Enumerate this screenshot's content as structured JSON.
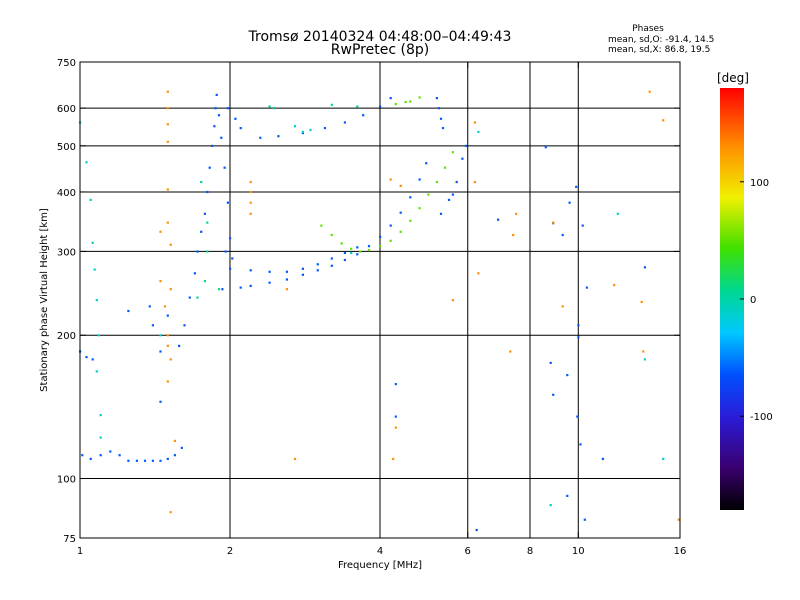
{
  "chart_data": {
    "type": "scatter",
    "title": "Tromsø 20140324 04:48:00–04:49:43",
    "subtitle": "RwPretec (8p)",
    "xlabel": "Frequency [MHz]",
    "ylabel": "Stationary phase Virtual Height [km]",
    "x_scale": "log",
    "y_scale": "log",
    "xlim": [
      1,
      16
    ],
    "ylim": [
      75,
      750
    ],
    "x_ticks": [
      1,
      2,
      4,
      6,
      8,
      10,
      16
    ],
    "y_ticks": [
      75,
      100,
      200,
      300,
      400,
      500,
      600,
      750
    ],
    "x_gridlines": [
      2,
      4,
      6,
      8,
      10
    ],
    "y_gridlines": [
      100,
      200,
      300,
      400,
      500,
      600
    ],
    "stats": {
      "heading": "Phases",
      "line_o": "mean, sd,O: -91.4, 14.5",
      "line_x": "mean, sd,X:  86.8, 19.5"
    },
    "colorbar": {
      "label": "[deg]",
      "range": [
        -180,
        180
      ],
      "ticks": [
        -100,
        0,
        100
      ]
    },
    "series": [
      {
        "color_value": -95,
        "points": [
          [
            1.01,
            112
          ],
          [
            1.05,
            110
          ],
          [
            1.1,
            112
          ],
          [
            1.15,
            114
          ],
          [
            1.2,
            112
          ],
          [
            1.25,
            109
          ],
          [
            1.3,
            109
          ],
          [
            1.35,
            109
          ],
          [
            1.4,
            109
          ],
          [
            1.45,
            109
          ],
          [
            1.5,
            110
          ],
          [
            1.55,
            112
          ],
          [
            1.6,
            116
          ],
          [
            1.0,
            185
          ],
          [
            1.03,
            180
          ],
          [
            1.06,
            178
          ],
          [
            1.58,
            190
          ],
          [
            1.62,
            210
          ],
          [
            1.66,
            240
          ],
          [
            1.7,
            270
          ],
          [
            1.72,
            300
          ],
          [
            1.75,
            330
          ],
          [
            1.78,
            360
          ],
          [
            1.8,
            400
          ],
          [
            1.82,
            450
          ],
          [
            1.84,
            500
          ],
          [
            1.86,
            550
          ],
          [
            1.87,
            600
          ],
          [
            1.88,
            640
          ],
          [
            1.9,
            580
          ],
          [
            1.92,
            520
          ],
          [
            1.95,
            450
          ],
          [
            1.98,
            380
          ],
          [
            2.0,
            320
          ],
          [
            2.02,
            290
          ],
          [
            1.96,
            300
          ],
          [
            1.93,
            250
          ],
          [
            2.1,
            252
          ],
          [
            2.2,
            254
          ],
          [
            2.4,
            258
          ],
          [
            2.6,
            262
          ],
          [
            2.8,
            268
          ],
          [
            3.0,
            274
          ],
          [
            3.2,
            280
          ],
          [
            3.4,
            288
          ],
          [
            3.6,
            296
          ],
          [
            3.8,
            308
          ],
          [
            4.0,
            322
          ],
          [
            4.2,
            340
          ],
          [
            4.4,
            362
          ],
          [
            4.6,
            390
          ],
          [
            4.8,
            425
          ],
          [
            4.95,
            460
          ],
          [
            2.0,
            276
          ],
          [
            2.2,
            274
          ],
          [
            2.4,
            272
          ],
          [
            2.6,
            272
          ],
          [
            2.8,
            276
          ],
          [
            3.0,
            282
          ],
          [
            3.2,
            290
          ],
          [
            3.4,
            298
          ],
          [
            3.6,
            306
          ],
          [
            2.3,
            520
          ],
          [
            2.5,
            524
          ],
          [
            2.8,
            532
          ],
          [
            3.1,
            545
          ],
          [
            3.4,
            560
          ],
          [
            3.7,
            580
          ],
          [
            4.0,
            605
          ],
          [
            4.2,
            630
          ],
          [
            1.98,
            600
          ],
          [
            2.05,
            570
          ],
          [
            2.1,
            545
          ],
          [
            5.2,
            630
          ],
          [
            5.25,
            600
          ],
          [
            5.3,
            570
          ],
          [
            5.35,
            545
          ],
          [
            5.3,
            360
          ],
          [
            5.5,
            385
          ],
          [
            5.7,
            420
          ],
          [
            5.85,
            470
          ],
          [
            5.95,
            500
          ],
          [
            5.6,
            395
          ],
          [
            1.4,
            210
          ],
          [
            1.5,
            220
          ],
          [
            1.45,
            185
          ],
          [
            1.45,
            145
          ],
          [
            1.25,
            225
          ],
          [
            1.38,
            230
          ],
          [
            4.3,
            158
          ],
          [
            4.3,
            135
          ],
          [
            8.8,
            175
          ],
          [
            8.9,
            150
          ],
          [
            9.5,
            165
          ],
          [
            10.0,
            210
          ],
          [
            10.4,
            252
          ],
          [
            13.6,
            278
          ],
          [
            9.3,
            325
          ],
          [
            9.6,
            380
          ],
          [
            9.9,
            410
          ],
          [
            8.6,
            497
          ],
          [
            8.9,
            344
          ],
          [
            10.2,
            340
          ],
          [
            10.3,
            82
          ],
          [
            9.5,
            92
          ],
          [
            6.9,
            350
          ],
          [
            6.25,
            78
          ],
          [
            10.0,
            198
          ],
          [
            11.2,
            110
          ],
          [
            10.1,
            118
          ],
          [
            9.95,
            135
          ]
        ]
      },
      {
        "color_value": 50,
        "points": [
          [
            3.05,
            340
          ],
          [
            3.2,
            325
          ],
          [
            3.35,
            312
          ],
          [
            3.5,
            304
          ],
          [
            3.65,
            300
          ],
          [
            3.8,
            302
          ],
          [
            4.0,
            308
          ],
          [
            4.2,
            316
          ],
          [
            4.4,
            330
          ],
          [
            4.6,
            348
          ],
          [
            4.8,
            370
          ],
          [
            5.0,
            395
          ],
          [
            5.2,
            420
          ],
          [
            5.4,
            450
          ],
          [
            5.6,
            485
          ],
          [
            4.6,
            620
          ],
          [
            4.8,
            632
          ],
          [
            4.3,
            612
          ],
          [
            4.5,
            618
          ]
        ]
      },
      {
        "color_value": 140,
        "points": [
          [
            1.5,
            650
          ],
          [
            1.5,
            600
          ],
          [
            1.5,
            555
          ],
          [
            1.5,
            510
          ],
          [
            1.5,
            405
          ],
          [
            1.5,
            345
          ],
          [
            1.45,
            330
          ],
          [
            1.52,
            310
          ],
          [
            1.45,
            260
          ],
          [
            1.52,
            250
          ],
          [
            1.48,
            230
          ],
          [
            1.5,
            200
          ],
          [
            1.5,
            190
          ],
          [
            1.52,
            178
          ],
          [
            1.5,
            160
          ],
          [
            1.55,
            120
          ],
          [
            1.52,
            85
          ],
          [
            2.2,
            420
          ],
          [
            2.2,
            400
          ],
          [
            2.2,
            380
          ],
          [
            2.2,
            360
          ],
          [
            2.6,
            250
          ],
          [
            2.7,
            110
          ],
          [
            4.2,
            425
          ],
          [
            4.4,
            412
          ],
          [
            4.3,
            128
          ],
          [
            4.25,
            110
          ],
          [
            6.2,
            560
          ],
          [
            6.2,
            420
          ],
          [
            6.3,
            270
          ],
          [
            5.6,
            237
          ],
          [
            7.5,
            360
          ],
          [
            7.4,
            325
          ],
          [
            7.3,
            185
          ],
          [
            8.9,
            345
          ],
          [
            9.3,
            230
          ],
          [
            13.9,
            650
          ],
          [
            14.8,
            566
          ],
          [
            13.4,
            235
          ],
          [
            13.5,
            185
          ],
          [
            11.8,
            255
          ],
          [
            15.9,
            82
          ]
        ]
      },
      {
        "color_value": -20,
        "points": [
          [
            1.0,
            560
          ],
          [
            1.03,
            462
          ],
          [
            1.05,
            385
          ],
          [
            1.06,
            313
          ],
          [
            1.07,
            275
          ],
          [
            1.08,
            237
          ],
          [
            1.09,
            200
          ],
          [
            1.08,
            168
          ],
          [
            1.1,
            136
          ],
          [
            1.1,
            122
          ],
          [
            2.7,
            550
          ],
          [
            2.8,
            535
          ],
          [
            2.9,
            540
          ],
          [
            3.5,
            298
          ],
          [
            6.3,
            535
          ],
          [
            8.8,
            88
          ],
          [
            13.6,
            178
          ],
          [
            12.0,
            360
          ],
          [
            14.8,
            110
          ],
          [
            1.45,
            200
          ]
        ]
      },
      {
        "color_value": 0,
        "points": [
          [
            1.75,
            420
          ],
          [
            1.8,
            345
          ],
          [
            1.8,
            300
          ],
          [
            1.72,
            240
          ],
          [
            1.78,
            260
          ],
          [
            1.9,
            250
          ],
          [
            3.2,
            610
          ],
          [
            3.6,
            605
          ],
          [
            2.4,
            605
          ],
          [
            2.45,
            600
          ]
        ]
      }
    ]
  }
}
